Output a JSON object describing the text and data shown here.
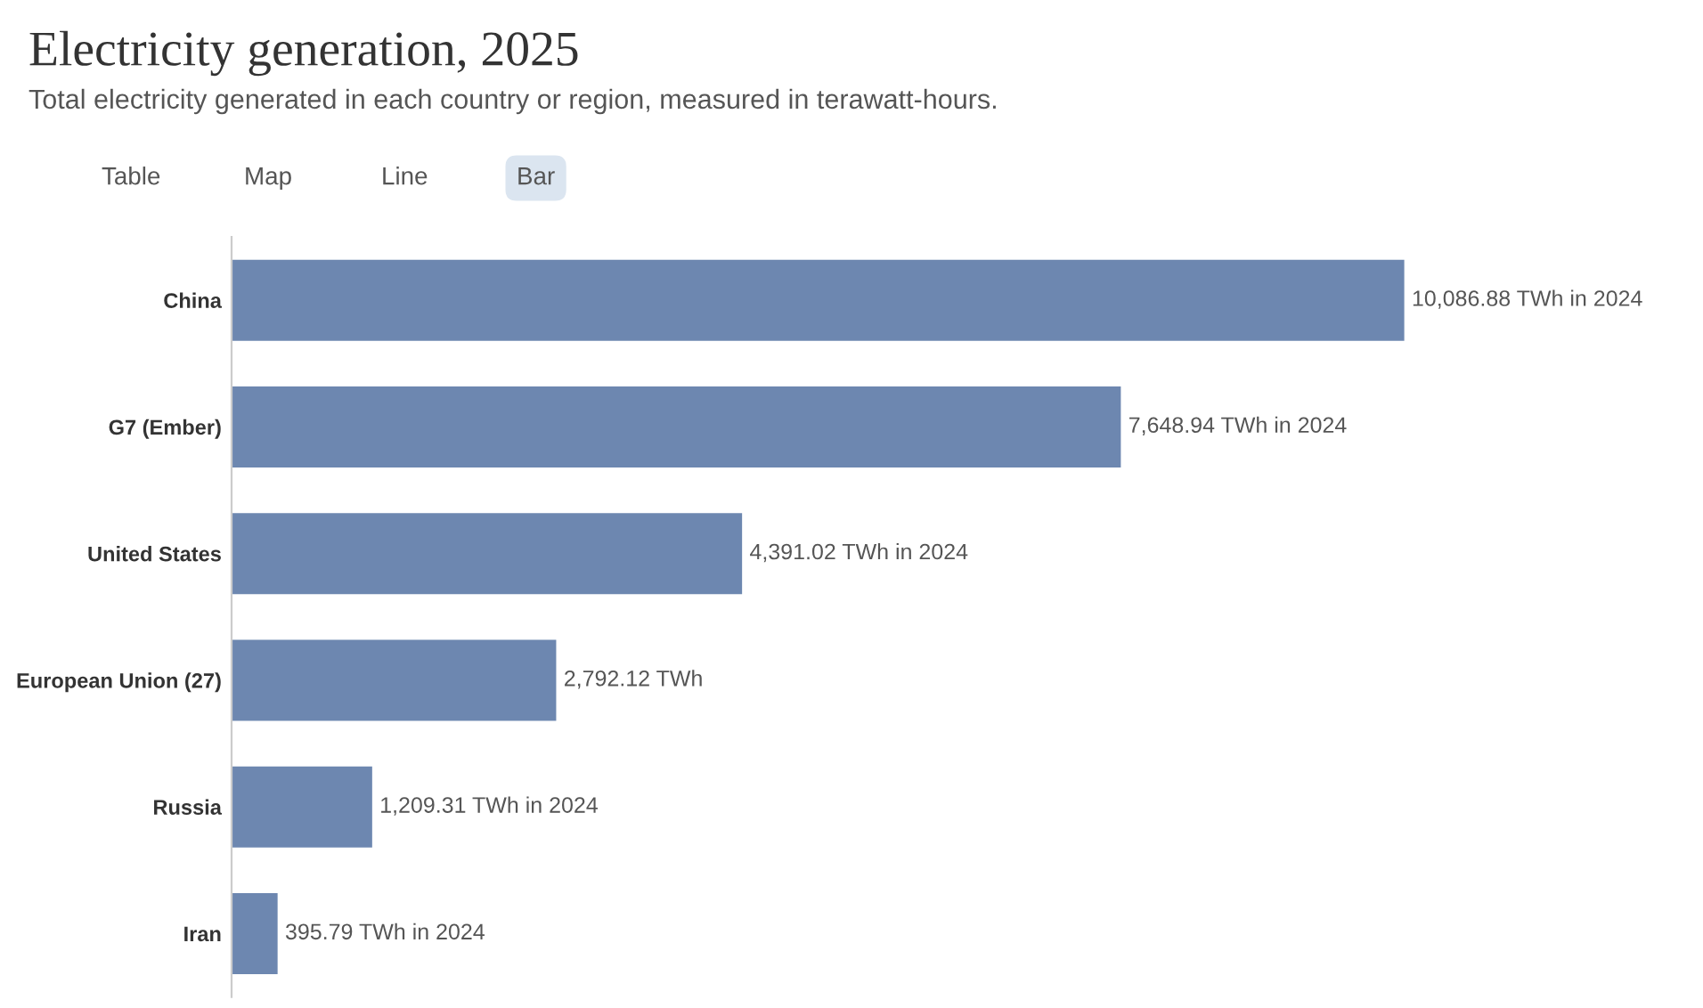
{
  "chart_data": {
    "type": "bar",
    "orientation": "horizontal",
    "title": "Electricity generation, 2025",
    "subtitle": "Total electricity generated in each country or region, measured in terawatt-hours.",
    "annotations": [
      "Table",
      "Map",
      "Line",
      "Bar"
    ],
    "categories": [
      "China",
      "G7 (Ember)",
      "United States",
      "European Union (27)",
      "Russia",
      "Iran"
    ],
    "values": [
      10086.88,
      7648.94,
      4391.02,
      2792.12,
      1209.31,
      395.79
    ],
    "color": "#6d87b0",
    "value_labels": [
      "10,086.88 TWh in 2024",
      "7,648.94 TWh in 2024",
      "4,391.02 TWh in 2024",
      "2,792.12 TWh",
      "1,209.31 TWh in 2024",
      "395.79 TWh in 2024"
    ],
    "grid": false,
    "legend": false
  }
}
